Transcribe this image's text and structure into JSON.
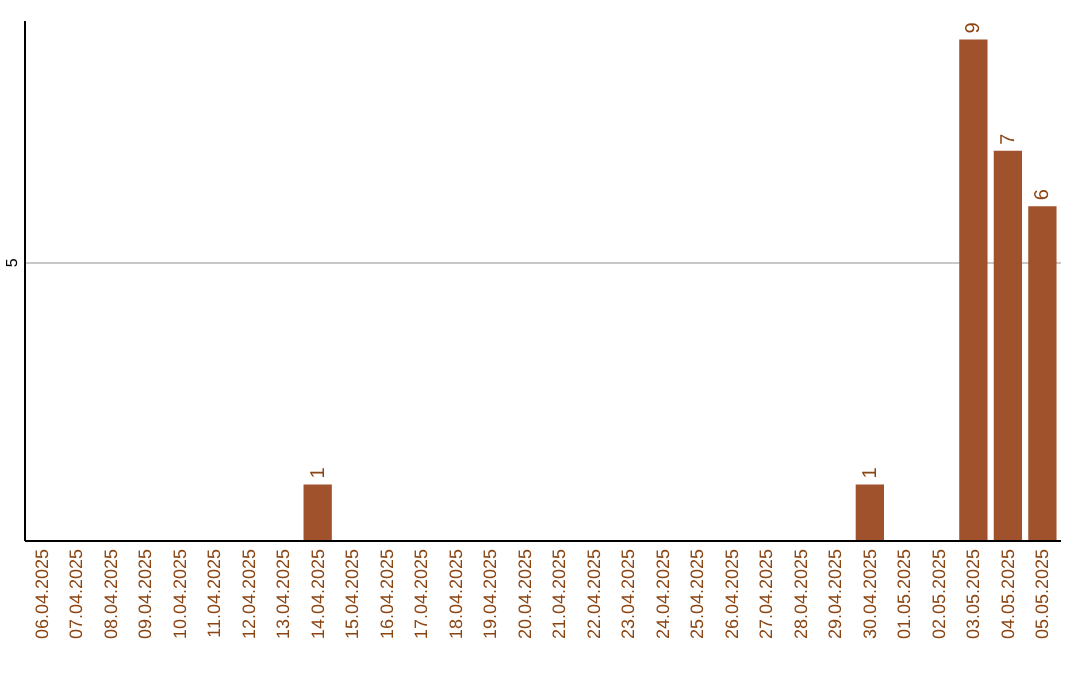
{
  "chart_data": {
    "type": "bar",
    "categories": [
      "06.04.2025",
      "07.04.2025",
      "08.04.2025",
      "09.04.2025",
      "10.04.2025",
      "11.04.2025",
      "12.04.2025",
      "13.04.2025",
      "14.04.2025",
      "15.04.2025",
      "16.04.2025",
      "17.04.2025",
      "18.04.2025",
      "19.04.2025",
      "20.04.2025",
      "21.04.2025",
      "22.04.2025",
      "23.04.2025",
      "24.04.2025",
      "25.04.2025",
      "26.04.2025",
      "27.04.2025",
      "28.04.2025",
      "29.04.2025",
      "30.04.2025",
      "01.05.2025",
      "02.05.2025",
      "03.05.2025",
      "04.05.2025",
      "05.05.2025"
    ],
    "values": [
      0,
      0,
      0,
      0,
      0,
      0,
      0,
      0,
      1,
      0,
      0,
      0,
      0,
      0,
      0,
      0,
      0,
      0,
      0,
      0,
      0,
      0,
      0,
      0,
      1,
      0,
      0,
      9,
      7,
      6
    ],
    "value_labels": [
      null,
      null,
      null,
      null,
      null,
      null,
      null,
      null,
      "1",
      null,
      null,
      null,
      null,
      null,
      null,
      null,
      null,
      null,
      null,
      null,
      null,
      null,
      null,
      null,
      "1",
      null,
      null,
      "9",
      "7",
      "6"
    ],
    "color": "#a0522d",
    "ylim": [
      0,
      9.35
    ],
    "yticks": [
      5
    ],
    "grid": "y"
  }
}
